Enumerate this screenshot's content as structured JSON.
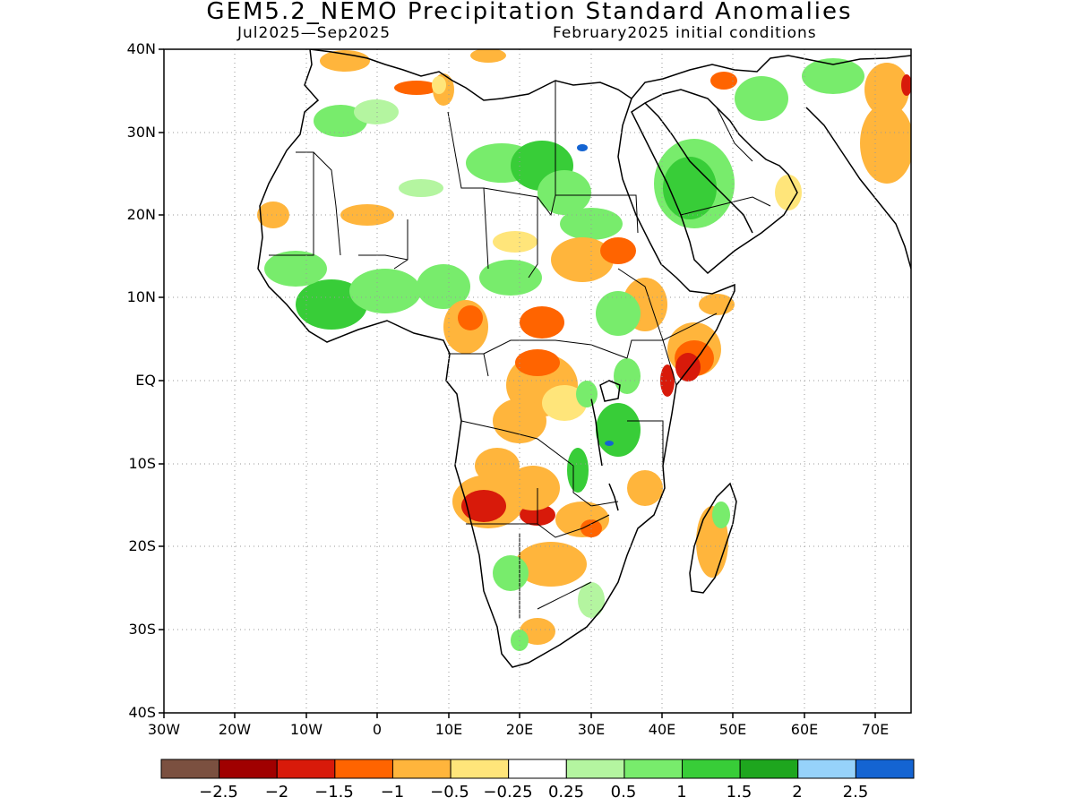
{
  "title": "GEM5.2_NEMO Precipitation Standard Anomalies",
  "subtitle_left": "Jul2025—Sep2025",
  "subtitle_right": "February2025 initial conditions",
  "lat_labels": [
    "40N",
    "30N",
    "20N",
    "10N",
    "EQ",
    "10S",
    "20S",
    "30S",
    "40S"
  ],
  "lon_labels": [
    "30W",
    "20W",
    "10W",
    "0",
    "10E",
    "20E",
    "30E",
    "40E",
    "50E",
    "60E",
    "70E"
  ],
  "colorbar": {
    "colors": [
      "#7b5040",
      "#a00000",
      "#d81a0a",
      "#ff6400",
      "#ffb53c",
      "#ffe57a",
      "#ffffff",
      "#b4f5a0",
      "#78ec6c",
      "#38cd38",
      "#1ea61e",
      "#96d2fa",
      "#1464d2"
    ],
    "labels": [
      "−2.5",
      "−2",
      "−1.5",
      "−1",
      "−0.5",
      "−0.25",
      "0.25",
      "0.5",
      "1",
      "1.5",
      "2",
      "2.5"
    ]
  },
  "map": {
    "lon_range": [
      -30,
      75
    ],
    "lat_range": [
      -40,
      40
    ],
    "grid": "dotted"
  }
}
